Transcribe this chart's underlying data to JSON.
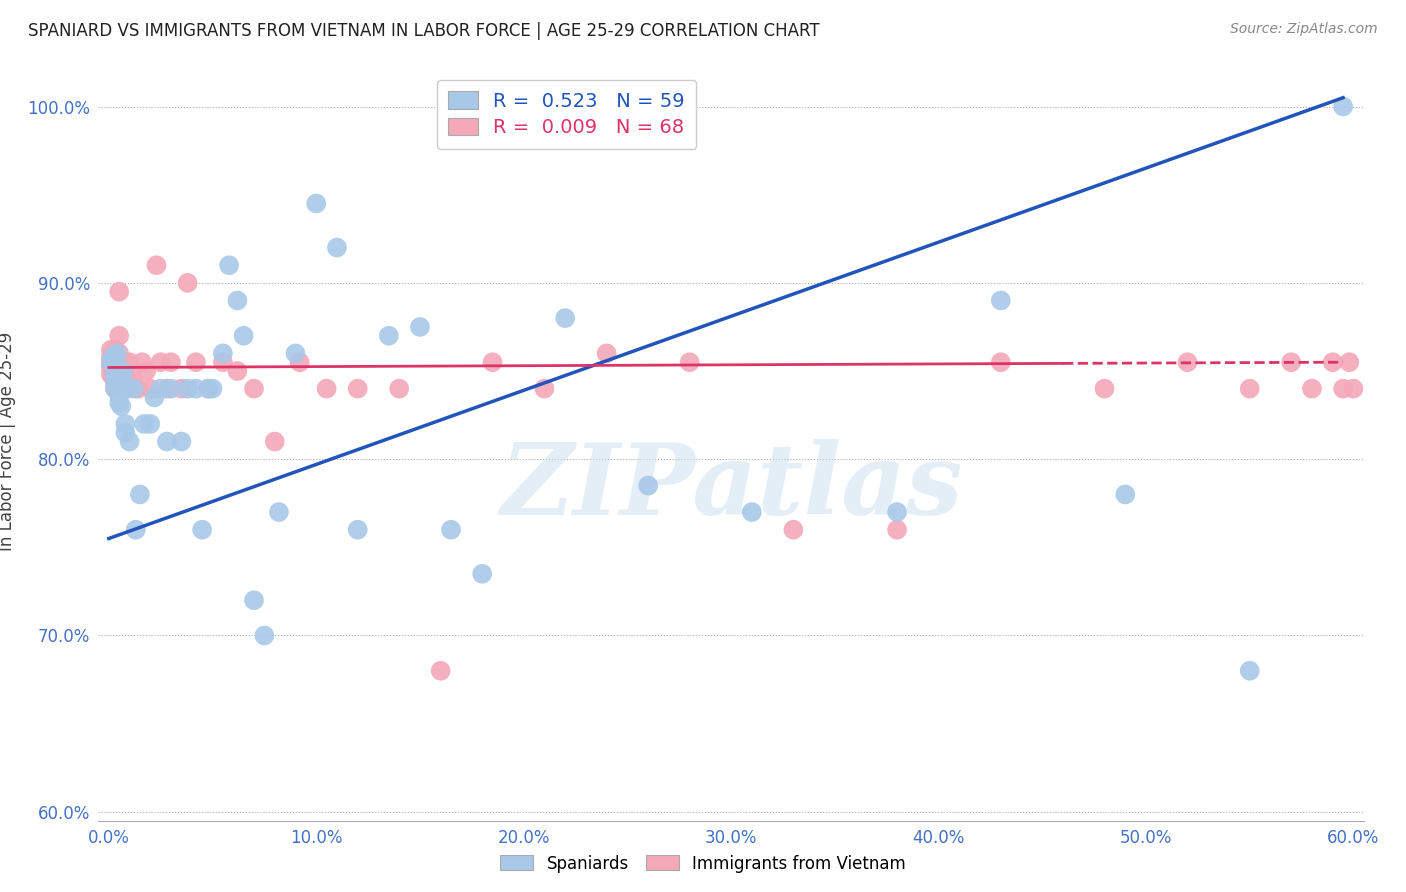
{
  "title": "SPANIARD VS IMMIGRANTS FROM VIETNAM IN LABOR FORCE | AGE 25-29 CORRELATION CHART",
  "source": "Source: ZipAtlas.com",
  "xlabel": "",
  "ylabel": "In Labor Force | Age 25-29",
  "xlim": [
    -0.005,
    0.605
  ],
  "ylim": [
    0.595,
    1.025
  ],
  "xticks": [
    0.0,
    0.1,
    0.2,
    0.3,
    0.4,
    0.5,
    0.6
  ],
  "yticks": [
    0.6,
    0.7,
    0.8,
    0.9,
    1.0
  ],
  "blue_R": 0.523,
  "blue_N": 59,
  "pink_R": 0.009,
  "pink_N": 68,
  "blue_color": "#A8C8E8",
  "pink_color": "#F4A8B8",
  "blue_line_color": "#2255BB",
  "pink_line_color": "#DD3366",
  "legend_label_blue": "Spaniards",
  "legend_label_pink": "Immigrants from Vietnam",
  "watermark_text": "ZIPatlas",
  "blue_line_x0": 0.0,
  "blue_line_y0": 0.755,
  "blue_line_x1": 0.595,
  "blue_line_y1": 1.005,
  "pink_line_x0": 0.0,
  "pink_line_y0": 0.852,
  "pink_line_x1": 0.595,
  "pink_line_y1": 0.855,
  "blue_scatter_x": [
    0.001,
    0.002,
    0.002,
    0.003,
    0.003,
    0.003,
    0.003,
    0.004,
    0.004,
    0.004,
    0.005,
    0.005,
    0.005,
    0.006,
    0.006,
    0.007,
    0.007,
    0.008,
    0.008,
    0.009,
    0.01,
    0.012,
    0.013,
    0.015,
    0.017,
    0.02,
    0.022,
    0.025,
    0.028,
    0.03,
    0.035,
    0.038,
    0.042,
    0.045,
    0.048,
    0.05,
    0.055,
    0.058,
    0.062,
    0.065,
    0.07,
    0.075,
    0.082,
    0.09,
    0.1,
    0.11,
    0.12,
    0.135,
    0.15,
    0.165,
    0.18,
    0.22,
    0.26,
    0.31,
    0.38,
    0.43,
    0.49,
    0.55,
    0.595
  ],
  "blue_scatter_y": [
    0.855,
    0.855,
    0.858,
    0.853,
    0.848,
    0.844,
    0.84,
    0.852,
    0.845,
    0.86,
    0.84,
    0.836,
    0.832,
    0.845,
    0.83,
    0.85,
    0.84,
    0.82,
    0.815,
    0.84,
    0.81,
    0.84,
    0.76,
    0.78,
    0.82,
    0.82,
    0.835,
    0.84,
    0.81,
    0.84,
    0.81,
    0.84,
    0.84,
    0.76,
    0.84,
    0.84,
    0.86,
    0.91,
    0.89,
    0.87,
    0.72,
    0.7,
    0.77,
    0.86,
    0.945,
    0.92,
    0.76,
    0.87,
    0.875,
    0.76,
    0.735,
    0.88,
    0.785,
    0.77,
    0.77,
    0.89,
    0.78,
    0.68,
    1.0
  ],
  "pink_scatter_x": [
    0.001,
    0.001,
    0.001,
    0.001,
    0.001,
    0.002,
    0.002,
    0.002,
    0.002,
    0.002,
    0.003,
    0.003,
    0.003,
    0.003,
    0.003,
    0.003,
    0.003,
    0.004,
    0.004,
    0.004,
    0.005,
    0.005,
    0.005,
    0.006,
    0.006,
    0.007,
    0.007,
    0.008,
    0.009,
    0.01,
    0.012,
    0.014,
    0.016,
    0.018,
    0.02,
    0.023,
    0.025,
    0.028,
    0.03,
    0.035,
    0.038,
    0.042,
    0.048,
    0.055,
    0.062,
    0.07,
    0.08,
    0.092,
    0.105,
    0.12,
    0.14,
    0.16,
    0.185,
    0.21,
    0.24,
    0.28,
    0.33,
    0.38,
    0.43,
    0.48,
    0.52,
    0.55,
    0.57,
    0.58,
    0.59,
    0.595,
    0.598,
    0.6
  ],
  "pink_scatter_y": [
    0.862,
    0.858,
    0.855,
    0.852,
    0.848,
    0.86,
    0.856,
    0.853,
    0.85,
    0.847,
    0.862,
    0.858,
    0.855,
    0.852,
    0.848,
    0.844,
    0.84,
    0.858,
    0.854,
    0.85,
    0.895,
    0.87,
    0.86,
    0.855,
    0.85,
    0.855,
    0.85,
    0.855,
    0.845,
    0.855,
    0.845,
    0.84,
    0.855,
    0.85,
    0.84,
    0.91,
    0.855,
    0.84,
    0.855,
    0.84,
    0.9,
    0.855,
    0.84,
    0.855,
    0.85,
    0.84,
    0.81,
    0.855,
    0.84,
    0.84,
    0.84,
    0.68,
    0.855,
    0.84,
    0.86,
    0.855,
    0.76,
    0.76,
    0.855,
    0.84,
    0.855,
    0.84,
    0.855,
    0.84,
    0.855,
    0.84,
    0.855,
    0.84
  ]
}
